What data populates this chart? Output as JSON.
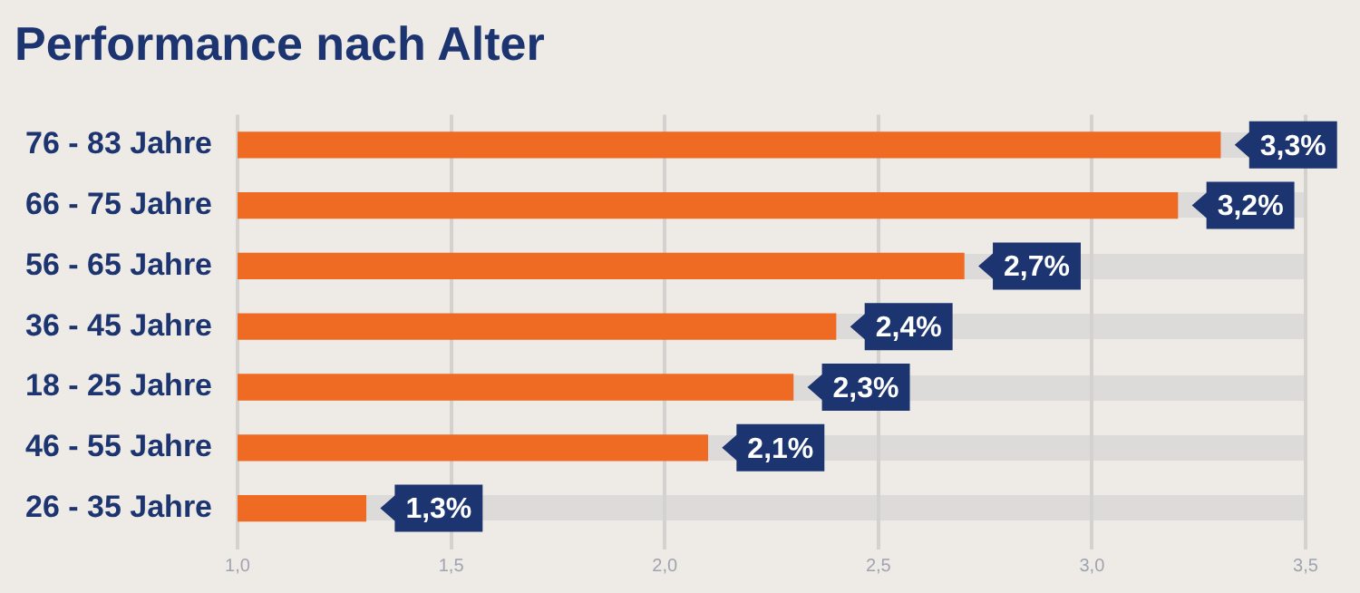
{
  "chart_data": {
    "type": "bar",
    "title": "Performance nach Alter",
    "orientation": "horizontal",
    "categories": [
      "76 - 83 Jahre",
      "66 - 75 Jahre",
      "56 - 65 Jahre",
      "36 - 45 Jahre",
      "18 - 25 Jahre",
      "46 - 55 Jahre",
      "26 - 35 Jahre"
    ],
    "values": [
      3.3,
      3.2,
      2.7,
      2.4,
      2.3,
      2.1,
      1.3
    ],
    "value_labels": [
      "3,3%",
      "3,2%",
      "2,7%",
      "2,4%",
      "2,3%",
      "2,1%",
      "1,3%"
    ],
    "color": "#ef6a22",
    "xlim": [
      1.0,
      3.5
    ],
    "xticks": [
      {
        "value": 1.0,
        "label": "1,0"
      },
      {
        "value": 1.5,
        "label": "1,5"
      },
      {
        "value": 2.0,
        "label": "2,0"
      },
      {
        "value": 2.5,
        "label": "2,5"
      },
      {
        "value": 3.0,
        "label": "3,0"
      },
      {
        "value": 3.5,
        "label": "3,5"
      }
    ],
    "grid": "x",
    "legend": false
  }
}
